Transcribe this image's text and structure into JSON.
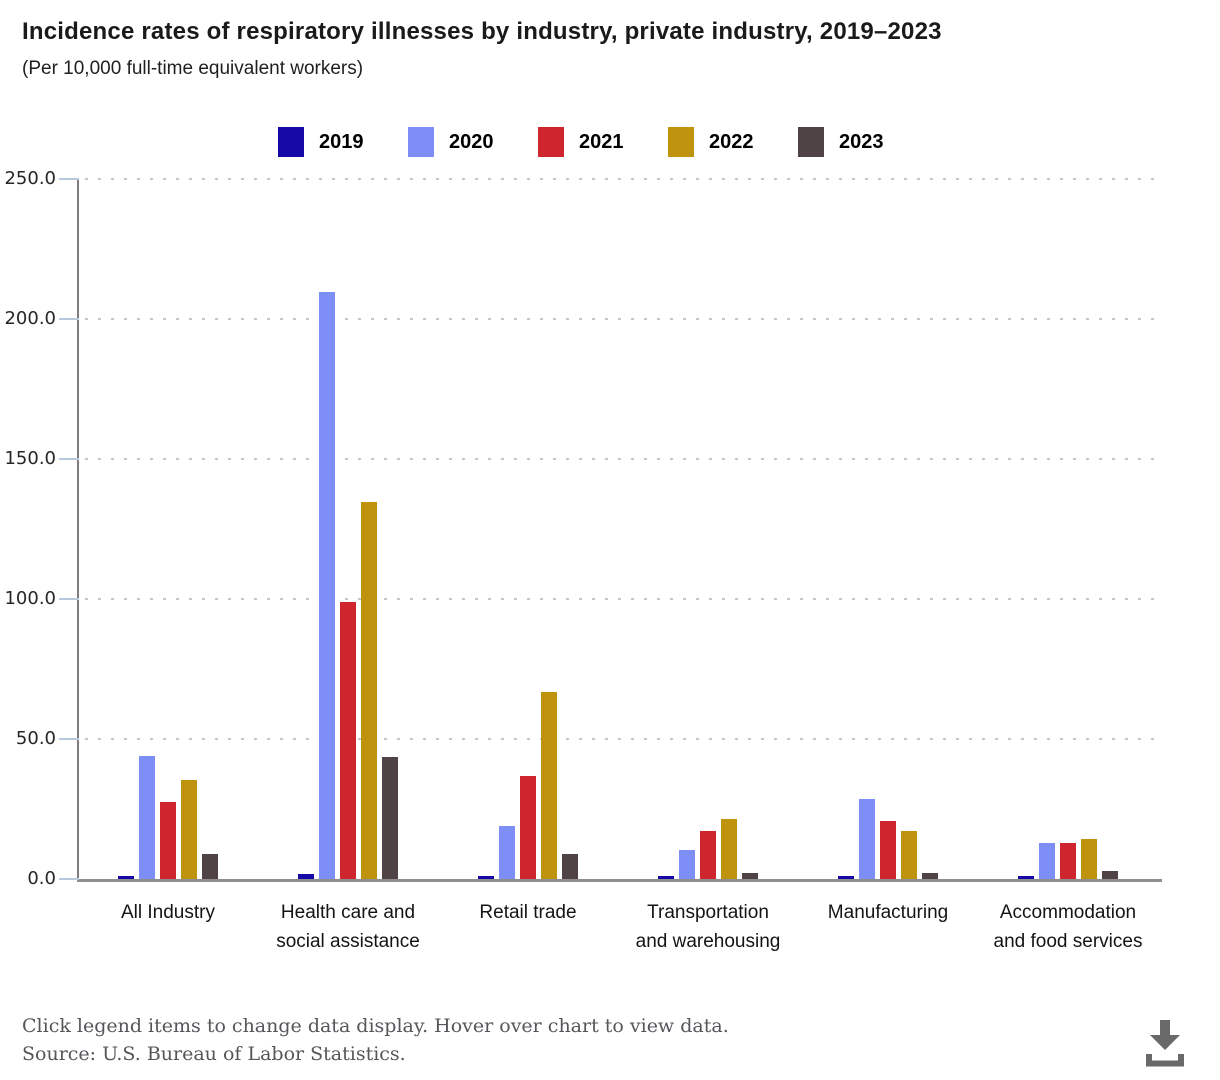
{
  "header": {
    "title": "Incidence rates of respiratory illnesses by industry, private industry, 2019–2023",
    "subtitle": "(Per 10,000 full-time equivalent workers)"
  },
  "legend": {
    "items": [
      {
        "label": "2019",
        "color": "#1708A8"
      },
      {
        "label": "2020",
        "color": "#7E8EF7"
      },
      {
        "label": "2021",
        "color": "#CE252E"
      },
      {
        "label": "2022",
        "color": "#C0930F"
      },
      {
        "label": "2023",
        "color": "#4F4345"
      }
    ]
  },
  "chart_data": {
    "type": "bar",
    "title": "Incidence rates of respiratory illnesses by industry, private industry, 2019–2023",
    "subtitle": "(Per 10,000 full-time equivalent workers)",
    "categories": [
      "All Industry",
      "Health care and\nsocial assistance",
      "Retail trade",
      "Transportation\nand warehousing",
      "Manufacturing",
      "Accommodation\nand food services"
    ],
    "series": [
      {
        "name": "2019",
        "color": "#1708A8",
        "values": [
          1.2,
          1.8,
          1.1,
          1.0,
          1.0,
          1.0
        ]
      },
      {
        "name": "2020",
        "color": "#7E8EF7",
        "values": [
          44.0,
          209.5,
          18.8,
          10.4,
          28.6,
          12.9
        ]
      },
      {
        "name": "2021",
        "color": "#CE252E",
        "values": [
          27.5,
          99.0,
          36.8,
          17.3,
          20.7,
          12.9
        ]
      },
      {
        "name": "2022",
        "color": "#C0930F",
        "values": [
          35.2,
          134.5,
          66.8,
          21.5,
          17.3,
          14.3
        ]
      },
      {
        "name": "2023",
        "color": "#4F4345",
        "values": [
          8.8,
          43.6,
          9.0,
          2.3,
          2.3,
          2.9
        ]
      }
    ],
    "ylim": [
      0,
      250
    ],
    "ytick_values": [
      250,
      200,
      150,
      100,
      50,
      0
    ],
    "ytick_labels": [
      "250.0",
      "200.0",
      "150.0",
      "100.0",
      "50.0",
      "0.0"
    ],
    "xlabel": "",
    "ylabel": "",
    "grid": "horizontal dotted",
    "legend_position": "top"
  },
  "footer": {
    "note": "Click legend items to change data display. Hover over chart to view data.",
    "source": "Source: U.S. Bureau of Labor Statistics.",
    "download_icon": "download-icon"
  }
}
